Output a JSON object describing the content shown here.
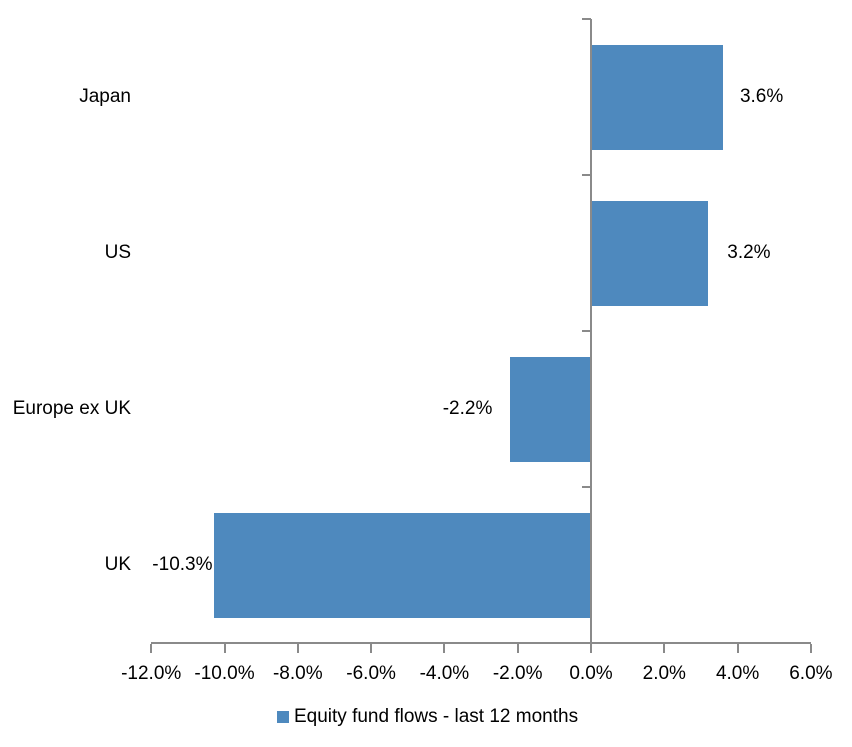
{
  "chart_data": {
    "type": "bar",
    "orientation": "horizontal",
    "title": "",
    "series_name": "Equity fund flows - last 12 months",
    "categories": [
      "Japan",
      "US",
      "Europe ex UK",
      "UK"
    ],
    "values": [
      3.6,
      3.2,
      -2.2,
      -10.3
    ],
    "value_labels": [
      "3.6%",
      "3.2%",
      "-2.2%",
      "-10.3%"
    ],
    "xlim": [
      -12,
      6
    ],
    "x_ticks": [
      -12,
      -10,
      -8,
      -6,
      -4,
      -2,
      0,
      2,
      4,
      6
    ],
    "x_tick_labels": [
      "-12.0%",
      "-10.0%",
      "-8.0%",
      "-6.0%",
      "-4.0%",
      "-2.0%",
      "0.0%",
      "2.0%",
      "4.0%",
      "6.0%"
    ],
    "grid": false,
    "legend_position": "bottom",
    "bar_color": "#4e89be",
    "axis_color": "#8a8a8a",
    "text_color": "#000000"
  }
}
